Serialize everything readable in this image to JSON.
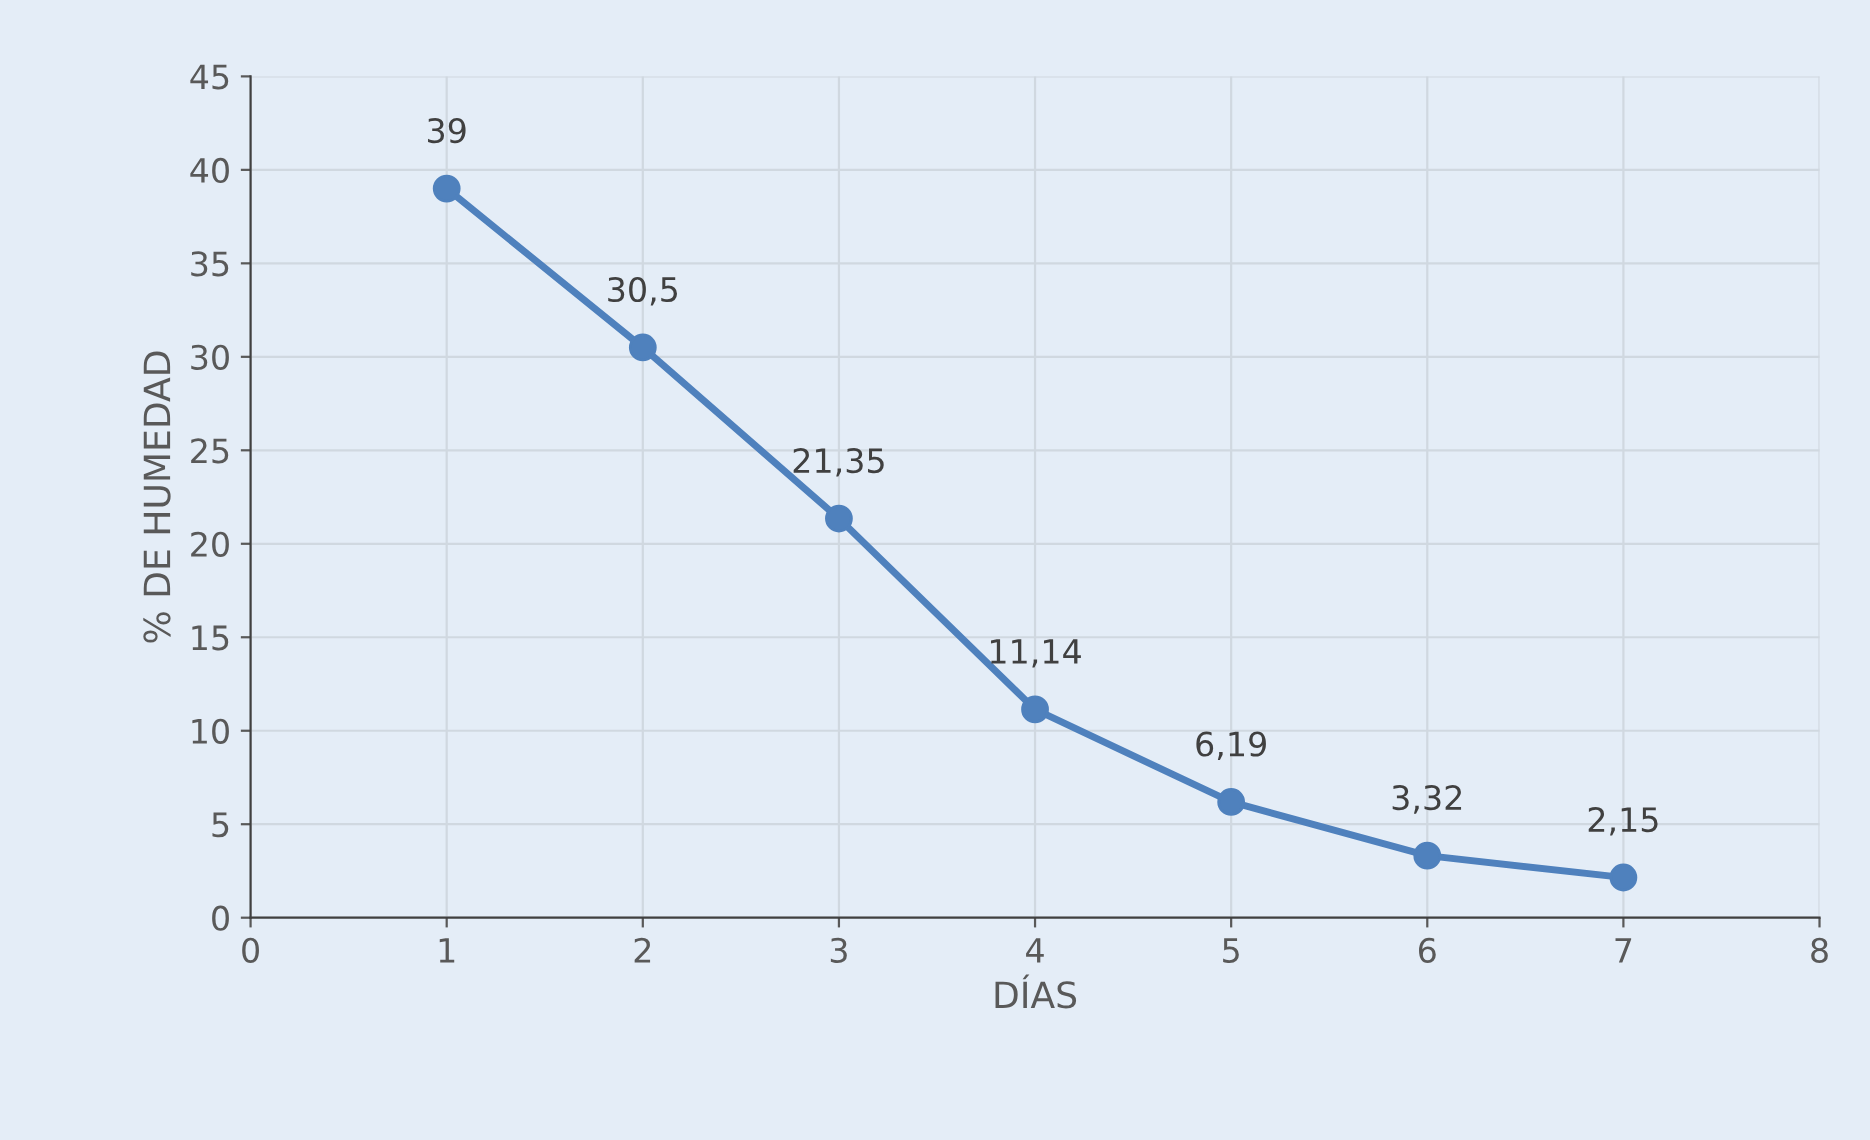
{
  "chart_data": {
    "type": "line",
    "xlabel": "DÍAS",
    "ylabel": "% DE HUMEDAD",
    "x": [
      1,
      2,
      3,
      4,
      5,
      6,
      7
    ],
    "series": [
      {
        "color": "#4f81bd",
        "values": [
          39,
          30.5,
          21.35,
          11.14,
          6.19,
          3.32,
          2.15
        ],
        "value_labels": [
          "39",
          "30,5",
          "21,35",
          "11,14",
          "6,19",
          "3,32",
          "2,15"
        ]
      }
    ],
    "xlim": [
      0,
      8
    ],
    "xticks": [
      0,
      1,
      2,
      3,
      4,
      5,
      6,
      7,
      8
    ],
    "ylim": [
      0,
      45
    ],
    "yticks": [
      0,
      5,
      10,
      15,
      20,
      25,
      30,
      35,
      40,
      45
    ],
    "grid": true,
    "marker": "circle",
    "line_style": "solid"
  }
}
